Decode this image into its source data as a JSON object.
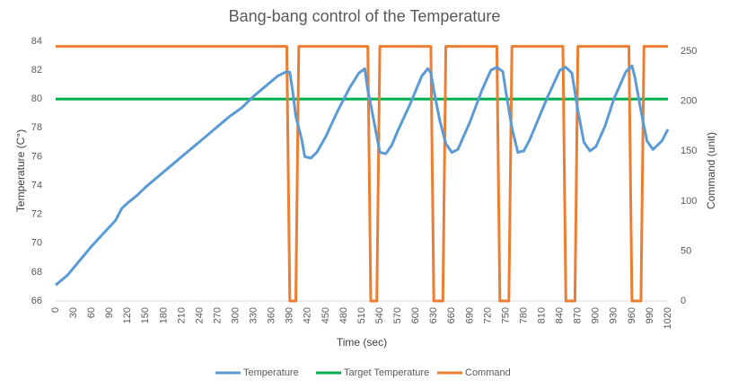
{
  "chart_data": {
    "type": "line",
    "title": "Bang-bang control of the Temperature",
    "xlabel": "Time (sec)",
    "ylabel_left": "Temperature (C°)",
    "ylabel_right": "Command (unit)",
    "xlim": [
      0,
      1020
    ],
    "ylim_left": [
      66,
      84
    ],
    "ylim_right": [
      0,
      260
    ],
    "x_ticks": [
      "0",
      "30",
      "60",
      "90",
      "120",
      "150",
      "180",
      "210",
      "240",
      "270",
      "300",
      "330",
      "360",
      "390",
      "420",
      "450",
      "480",
      "510",
      "540",
      "570",
      "600",
      "630",
      "660",
      "690",
      "720",
      "750",
      "780",
      "810",
      "840",
      "870",
      "900",
      "930",
      "960",
      "990",
      "1020"
    ],
    "y_ticks_left": [
      "66",
      "68",
      "70",
      "72",
      "74",
      "76",
      "78",
      "80",
      "82",
      "84"
    ],
    "y_ticks_right": [
      "0",
      "50",
      "100",
      "150",
      "200",
      "250"
    ],
    "grid": false,
    "legend_position": "bottom",
    "series": [
      {
        "name": "Temperature",
        "axis": "left",
        "color": "#5b9bd5",
        "x": [
          0,
          20,
          40,
          60,
          80,
          100,
          110,
          120,
          135,
          150,
          170,
          190,
          210,
          230,
          250,
          270,
          290,
          310,
          330,
          350,
          370,
          385,
          390,
          395,
          400,
          410,
          415,
          425,
          435,
          450,
          470,
          490,
          505,
          515,
          520,
          530,
          540,
          550,
          560,
          570,
          590,
          610,
          620,
          625,
          630,
          640,
          650,
          660,
          670,
          690,
          710,
          725,
          735,
          745,
          750,
          760,
          770,
          780,
          790,
          800,
          820,
          840,
          850,
          860,
          870,
          880,
          890,
          900,
          915,
          930,
          950,
          960,
          965,
          975,
          985,
          995,
          1010,
          1020
        ],
        "values": [
          67.1,
          67.8,
          68.8,
          69.8,
          70.7,
          71.6,
          72.4,
          72.8,
          73.3,
          73.9,
          74.6,
          75.3,
          76.0,
          76.7,
          77.4,
          78.1,
          78.8,
          79.4,
          80.2,
          80.9,
          81.6,
          81.9,
          81.85,
          80.5,
          78.8,
          77.2,
          76.0,
          75.9,
          76.3,
          77.4,
          79.2,
          80.8,
          81.8,
          82.1,
          80.6,
          78.5,
          76.3,
          76.2,
          76.8,
          77.8,
          79.6,
          81.6,
          82.1,
          81.8,
          80.6,
          78.5,
          76.9,
          76.3,
          76.5,
          78.4,
          80.6,
          82.0,
          82.2,
          81.9,
          80.5,
          78.0,
          76.3,
          76.4,
          77.2,
          78.2,
          80.2,
          82.0,
          82.2,
          81.8,
          79.2,
          77.0,
          76.4,
          76.7,
          78.1,
          80.0,
          81.9,
          82.3,
          81.5,
          79.2,
          77.1,
          76.5,
          77.1,
          77.9
        ]
      },
      {
        "name": "Target Temperature",
        "axis": "left",
        "color": "#00b050",
        "x": [
          0,
          1020
        ],
        "values": [
          80,
          80
        ]
      },
      {
        "name": "Command",
        "axis": "right",
        "color": "#ed7d31",
        "x": [
          0,
          385,
          390,
          400,
          405,
          520,
          525,
          535,
          540,
          625,
          630,
          645,
          650,
          735,
          740,
          755,
          760,
          845,
          850,
          865,
          870,
          955,
          960,
          975,
          980,
          1020
        ],
        "values": [
          255,
          255,
          0,
          0,
          255,
          255,
          0,
          0,
          255,
          255,
          0,
          0,
          255,
          255,
          0,
          0,
          255,
          255,
          0,
          0,
          255,
          255,
          0,
          0,
          255,
          255
        ]
      }
    ]
  }
}
